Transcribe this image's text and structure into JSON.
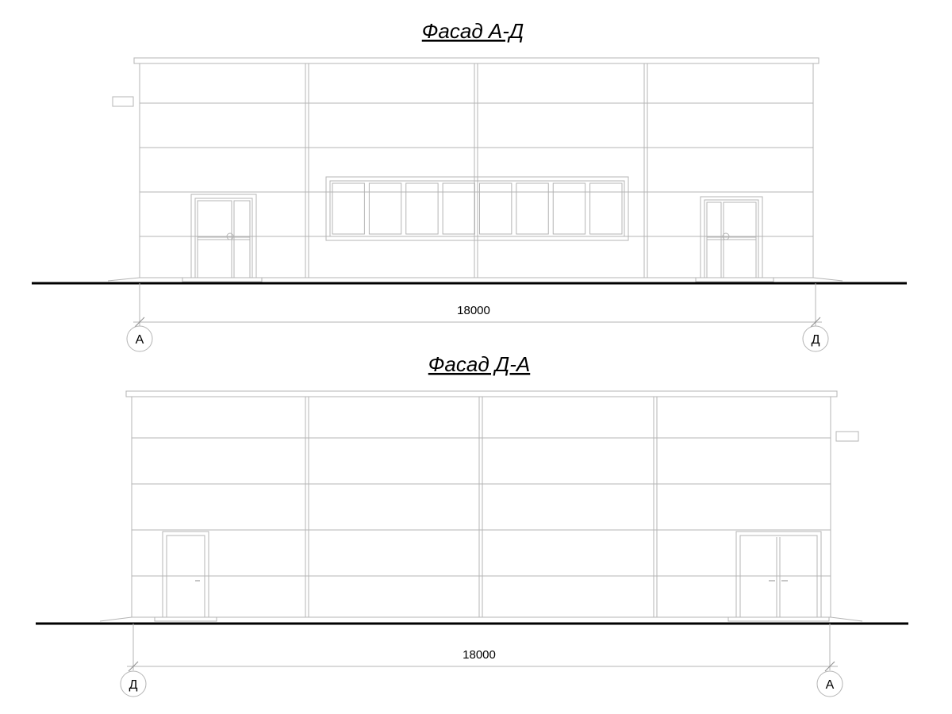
{
  "facades": [
    {
      "title": "Фасад А-Д",
      "dimension": "18000",
      "axis_left": "А",
      "axis_right": "Д"
    },
    {
      "title": "Фасад Д-А",
      "dimension": "18000",
      "axis_left": "Д",
      "axis_right": "А"
    }
  ],
  "colors": {
    "ground": "#000000",
    "lines": "#b4b4b4"
  }
}
